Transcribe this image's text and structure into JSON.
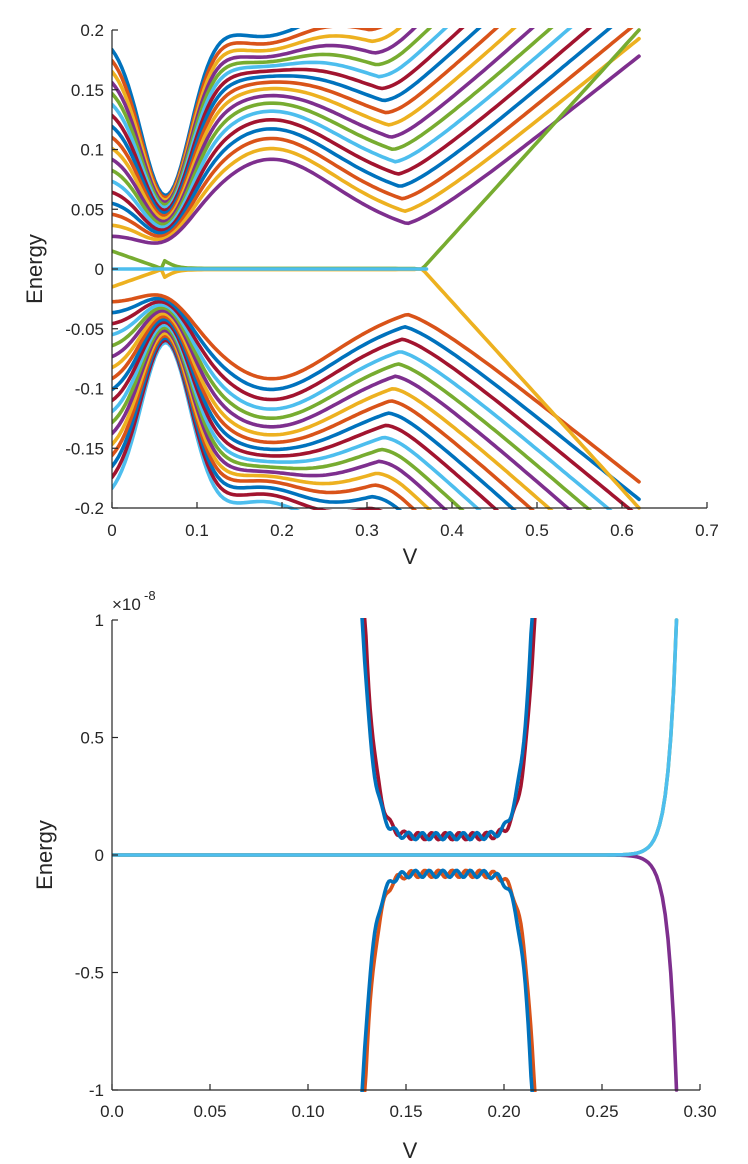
{
  "palette": [
    "#0072BD",
    "#D95319",
    "#EDB120",
    "#7E2F8E",
    "#77AC30",
    "#4DBEEE",
    "#A2142F"
  ],
  "chart_data": [
    {
      "type": "line",
      "xlabel": "V",
      "ylabel": "Energy",
      "xlim": [
        0,
        0.7
      ],
      "ylim": [
        -0.2,
        0.2
      ],
      "xticks": [
        "0",
        "0.1",
        "0.2",
        "0.3",
        "0.4",
        "0.5",
        "0.6",
        "0.7"
      ],
      "yticks": [
        "-0.2",
        "-0.15",
        "-0.1",
        "-0.05",
        "0",
        "0.05",
        "0.1",
        "0.15",
        "0.2"
      ],
      "grid": false,
      "series_description": "Energy levels versus V for many bands; each band shown approximately",
      "bands": {
        "gap_edges_at_V0": [
          0.015,
          0.025,
          0.035,
          0.045,
          0.055,
          0.065,
          0.075,
          0.085,
          0.095,
          0.105,
          0.115,
          0.125,
          0.135,
          0.145,
          0.155,
          0.165,
          0.175,
          0.185,
          0.195
        ],
        "crossing_point_upper": {
          "V": 0.18,
          "E": 0.16
        },
        "crossing_point_lower": {
          "V": 0.18,
          "E": -0.165
        },
        "zero_mode_range": [
          0.07,
          0.37
        ],
        "outer_band_end_V": 0.62
      }
    },
    {
      "type": "line",
      "xlabel": "V",
      "ylabel": "Energy",
      "xlim": [
        0,
        0.3
      ],
      "ylim": [
        -1,
        1
      ],
      "y_exponent": "×10",
      "y_exponent_power": "-8",
      "xticks": [
        "0.0",
        "0.05",
        "0.10",
        "0.15",
        "0.20",
        "0.25",
        "0.30"
      ],
      "yticks": [
        "-1",
        "-0.5",
        "0",
        "0.5",
        "1"
      ],
      "grid": false,
      "pockets": {
        "upper": {
          "V_range": [
            0.128,
            0.215
          ],
          "min_E": 0.08
        },
        "lower": {
          "V_range": [
            0.128,
            0.215
          ],
          "max_E": -0.08
        },
        "edge_V": 0.288
      }
    }
  ]
}
